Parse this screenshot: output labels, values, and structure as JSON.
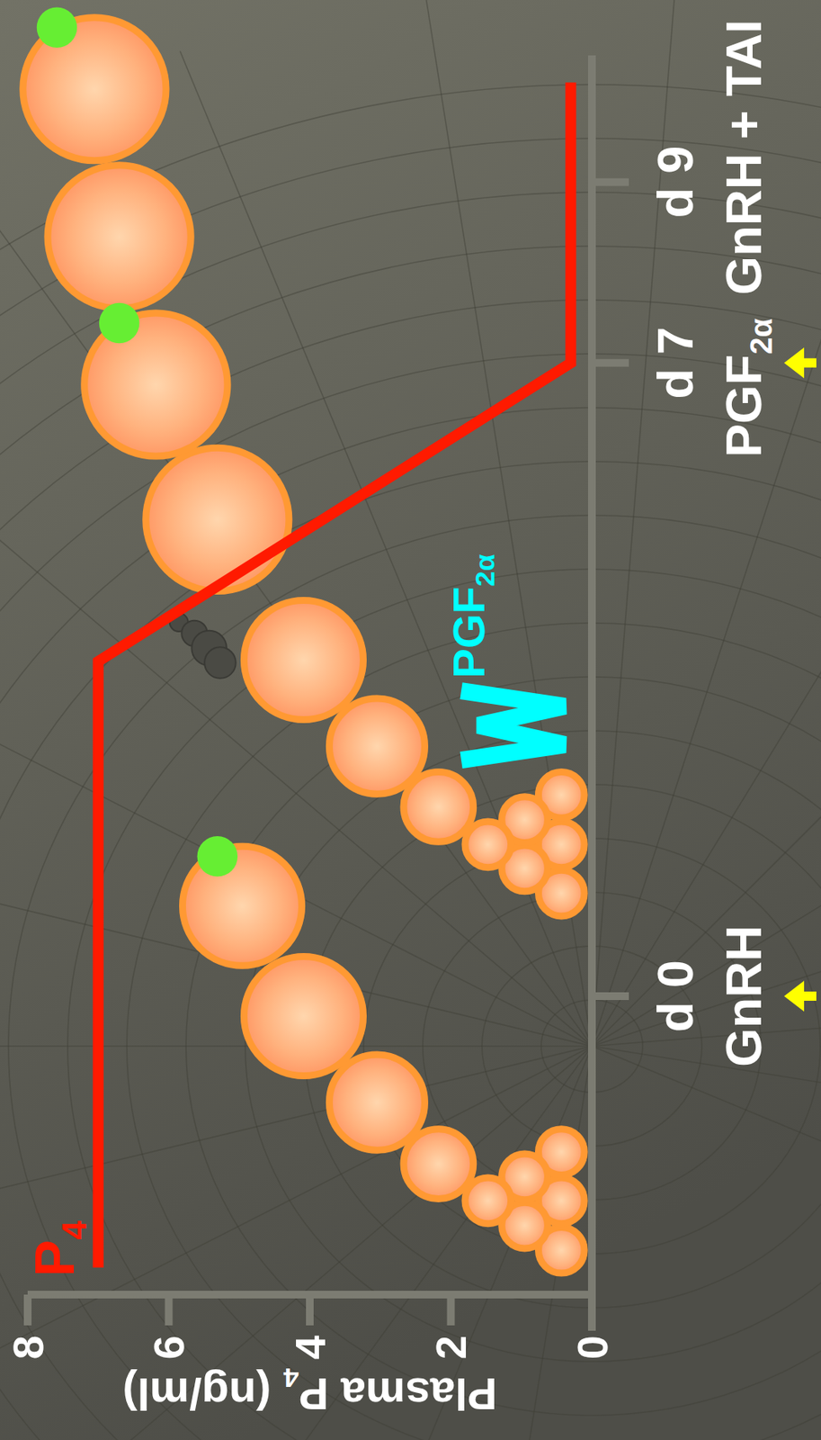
{
  "chart_data": {
    "type": "line",
    "y_label": "Plasma P4 (ng/ml)",
    "x": [
      -3,
      3.7,
      7,
      10.1
    ],
    "series": [
      {
        "name": "P4",
        "color": "#ff1a00",
        "values": [
          7,
          7,
          0.3,
          0.3
        ]
      }
    ],
    "xlim": [
      -3.3,
      10.4
    ],
    "xticks": [
      {
        "value": 0,
        "label": "d 0"
      },
      {
        "value": 7,
        "label": "d 7"
      },
      {
        "value": 9,
        "label": "d 9"
      }
    ],
    "ylim": [
      0,
      8
    ],
    "yticks": [
      0,
      2,
      4,
      6,
      8
    ],
    "events": [
      {
        "x": 0,
        "text": "GnRH"
      },
      {
        "x": 7,
        "text": "PGF2α"
      },
      {
        "x": 9,
        "text": "GnRH + TAI"
      }
    ],
    "annotations": [
      {
        "x": 4.2,
        "text": "PGF2α",
        "color": "#00ffff"
      }
    ],
    "grid": false
  }
}
